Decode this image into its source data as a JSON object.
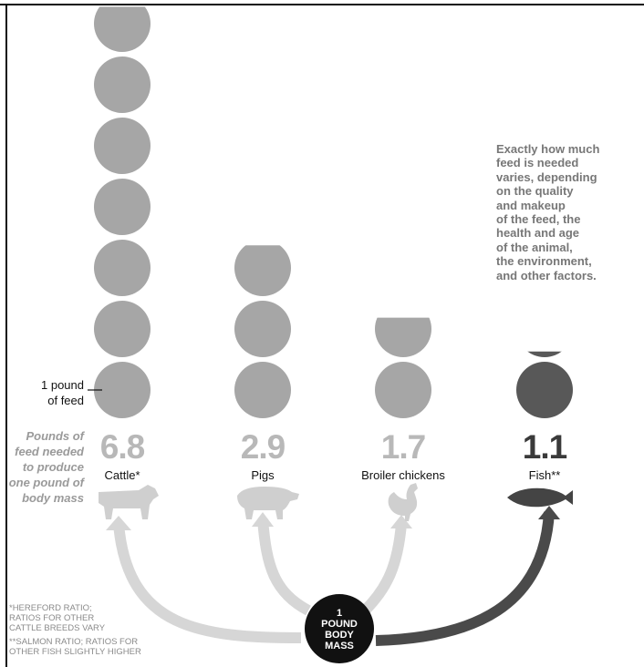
{
  "note": "Exactly how much\nfeed is needed\nvaries, depending\non the quality\nand makeup\nof the feed, the\nhealth and age\nof the animal,\nthe environment,\nand other factors.",
  "side_label": "Pounds of\nfeed needed\nto produce\none pound of\nbody mass",
  "unit_label": "1 pound\nof feed",
  "center_label": [
    "1",
    "POUND",
    "BODY",
    "MASS"
  ],
  "footnotes": [
    "*HEREFORD RATIO;\n RATIOS FOR OTHER\n CATTLE BREEDS VARY",
    "**SALMON RATIO; RATIOS FOR\n OTHER FISH SLIGHTLY HIGHER"
  ],
  "colors": {
    "light_circle": "#a6a6a6",
    "dark_circle": "#585858",
    "light_arrow": "#d6d6d6",
    "dark_arrow": "#4a4a4a",
    "value_light": "#b8b8b8",
    "value_dark": "#3a3a3a",
    "center_badge": "#111111"
  },
  "chart_data": {
    "type": "bar",
    "title": "",
    "ylabel": "Pounds of feed needed to produce one pound of body mass",
    "categories": [
      "Cattle*",
      "Pigs",
      "Broiler chickens",
      "Fish**"
    ],
    "icons": [
      "cow-icon",
      "pig-icon",
      "chicken-icon",
      "fish-icon"
    ],
    "values": [
      6.8,
      2.9,
      1.7,
      1.1
    ],
    "value_labels": [
      "6.8",
      "2.9",
      "1.7",
      "1.1"
    ],
    "highlight": [
      false,
      false,
      false,
      true
    ],
    "unit": "1 circle = 1 pound of feed"
  }
}
